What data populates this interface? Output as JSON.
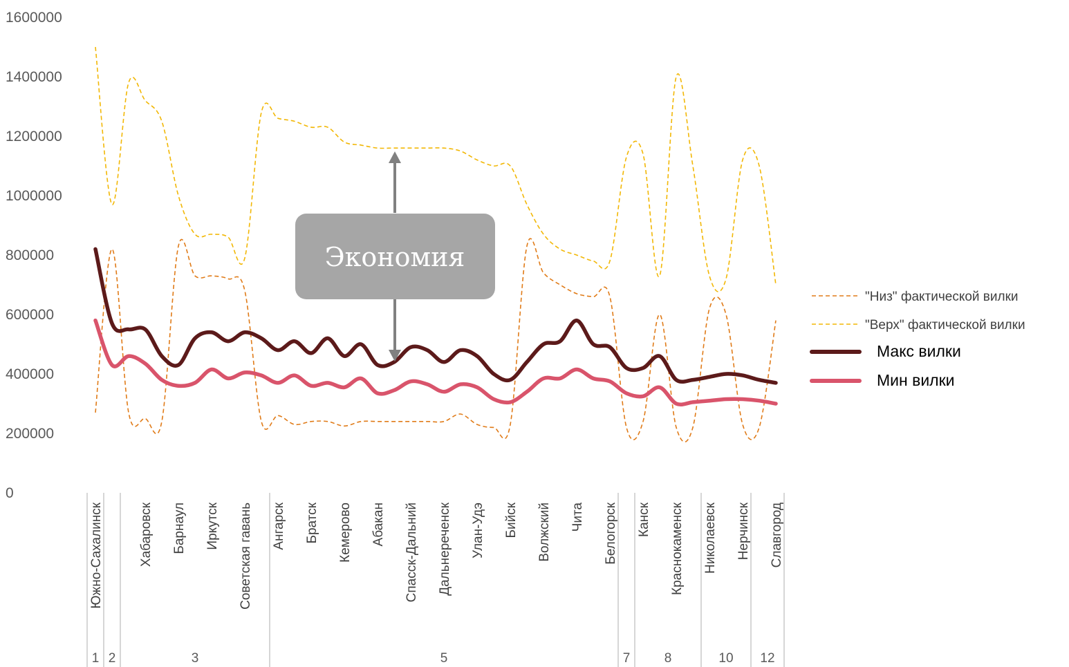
{
  "chart_data": {
    "type": "line",
    "ylim": [
      0,
      1600000
    ],
    "yticks": [
      0,
      200000,
      400000,
      600000,
      800000,
      1000000,
      1200000,
      1400000,
      1600000
    ],
    "ytick_labels": [
      "0",
      "200000",
      "400000",
      "600000",
      "800000",
      "1000000",
      "1200000",
      "1400000",
      "1600000"
    ],
    "grid": false,
    "legend_position": "right",
    "categories": [
      "Южно-Сахалинск",
      "",
      "",
      "Хабаровск",
      "",
      "Барнаул",
      "",
      "Иркутск",
      "",
      "Советская гавань",
      "",
      "Ангарск",
      "",
      "Братск",
      "",
      "Кемерово",
      "",
      "Абакан",
      "",
      "Спасск-Дальний",
      "",
      "Дальнереченск",
      "",
      "Улан-Удэ",
      "",
      "Бийск",
      "",
      "Волжский",
      "",
      "Чита",
      "",
      "Белогорск",
      "",
      "Канск",
      "",
      "Краснокаменск",
      "",
      "Николаевск",
      "",
      "Нерчинск",
      "",
      "Славгород"
    ],
    "groups": [
      {
        "label": "1",
        "start": 0,
        "end": 0
      },
      {
        "label": "2",
        "start": 1,
        "end": 1
      },
      {
        "label": "3",
        "start": 2,
        "end": 10
      },
      {
        "label": "5",
        "start": 11,
        "end": 31
      },
      {
        "label": "7",
        "start": 32,
        "end": 32
      },
      {
        "label": "8",
        "start": 33,
        "end": 36
      },
      {
        "label": "10",
        "start": 37,
        "end": 39
      },
      {
        "label": "12",
        "start": 40,
        "end": 41
      }
    ],
    "series": [
      {
        "name": "\"Низ\" фактической вилки",
        "color": "#E07B18",
        "style": "dashed",
        "values": [
          270000,
          820000,
          270000,
          250000,
          240000,
          830000,
          730000,
          730000,
          720000,
          680000,
          240000,
          260000,
          230000,
          240000,
          240000,
          225000,
          240000,
          240000,
          240000,
          240000,
          240000,
          240000,
          265000,
          230000,
          220000,
          230000,
          830000,
          740000,
          700000,
          670000,
          660000,
          660000,
          220000,
          240000,
          600000,
          220000,
          220000,
          620000,
          600000,
          230000,
          220000,
          580000
        ]
      },
      {
        "name": "\"Верх\" фактической вилки",
        "color": "#F2B705",
        "style": "dashed",
        "values": [
          1500000,
          970000,
          1380000,
          1320000,
          1250000,
          1000000,
          870000,
          870000,
          860000,
          790000,
          1280000,
          1260000,
          1250000,
          1230000,
          1230000,
          1180000,
          1170000,
          1160000,
          1160000,
          1160000,
          1160000,
          1160000,
          1150000,
          1120000,
          1100000,
          1100000,
          970000,
          870000,
          820000,
          800000,
          780000,
          780000,
          1130000,
          1140000,
          730000,
          1400000,
          1100000,
          730000,
          720000,
          1120000,
          1100000,
          700000
        ]
      },
      {
        "name": "Макс вилки",
        "color": "#5C1A1A",
        "style": "solid",
        "values": [
          820000,
          570000,
          550000,
          550000,
          460000,
          430000,
          520000,
          540000,
          510000,
          540000,
          520000,
          480000,
          510000,
          470000,
          520000,
          460000,
          500000,
          430000,
          440000,
          490000,
          480000,
          440000,
          480000,
          460000,
          400000,
          380000,
          440000,
          500000,
          510000,
          580000,
          500000,
          490000,
          420000,
          420000,
          460000,
          380000,
          380000,
          390000,
          400000,
          395000,
          380000,
          370000
        ]
      },
      {
        "name": "Мин вилки",
        "color": "#D9546B",
        "style": "solid",
        "values": [
          580000,
          430000,
          460000,
          435000,
          380000,
          360000,
          370000,
          415000,
          385000,
          405000,
          395000,
          370000,
          395000,
          360000,
          370000,
          355000,
          385000,
          335000,
          345000,
          375000,
          365000,
          340000,
          365000,
          355000,
          315000,
          305000,
          340000,
          385000,
          385000,
          415000,
          385000,
          375000,
          335000,
          325000,
          355000,
          300000,
          305000,
          310000,
          315000,
          315000,
          310000,
          300000
        ]
      }
    ],
    "annotation": {
      "text": "Экономия",
      "box_color": "#A6A6A6",
      "arrow_color": "#808080"
    }
  }
}
